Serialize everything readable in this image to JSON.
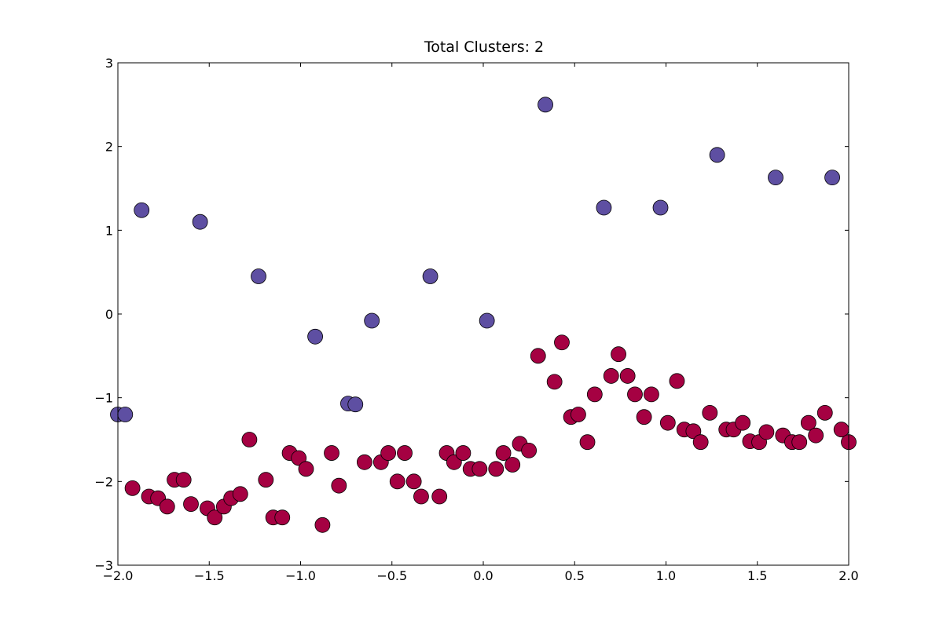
{
  "chart_data": {
    "type": "scatter",
    "title": "Total Clusters: 2",
    "xlabel": "",
    "ylabel": "",
    "xlim": [
      -2.0,
      2.0
    ],
    "ylim": [
      -3,
      3
    ],
    "x_ticks": [
      "−2.0",
      "−1.5",
      "−1.0",
      "−0.5",
      "0.0",
      "0.5",
      "1.0",
      "1.5",
      "2.0"
    ],
    "x_tick_values": [
      -2.0,
      -1.5,
      -1.0,
      -0.5,
      0.0,
      0.5,
      1.0,
      1.5,
      2.0
    ],
    "y_ticks": [
      "−3",
      "−2",
      "−1",
      "0",
      "1",
      "2",
      "3"
    ],
    "y_tick_values": [
      -3,
      -2,
      -1,
      0,
      1,
      2,
      3
    ],
    "grid": false,
    "legend": "none",
    "series": [
      {
        "color": "#5e4fa2",
        "points": [
          [
            -2.0,
            -1.2
          ],
          [
            -1.96,
            -1.2
          ],
          [
            -1.87,
            1.24
          ],
          [
            -1.55,
            1.1
          ],
          [
            -1.23,
            0.45
          ],
          [
            -0.92,
            -0.27
          ],
          [
            -0.74,
            -1.07
          ],
          [
            -0.7,
            -1.08
          ],
          [
            -0.61,
            -0.08
          ],
          [
            -0.29,
            0.45
          ],
          [
            0.02,
            -0.08
          ],
          [
            0.34,
            2.5
          ],
          [
            0.66,
            1.27
          ],
          [
            0.97,
            1.27
          ],
          [
            1.28,
            1.9
          ],
          [
            1.6,
            1.63
          ],
          [
            1.91,
            1.63
          ]
        ]
      },
      {
        "color": "#a50142",
        "points": [
          [
            -1.92,
            -2.08
          ],
          [
            -1.83,
            -2.18
          ],
          [
            -1.78,
            -2.2
          ],
          [
            -1.73,
            -2.3
          ],
          [
            -1.69,
            -1.98
          ],
          [
            -1.64,
            -1.98
          ],
          [
            -1.6,
            -2.27
          ],
          [
            -1.51,
            -2.32
          ],
          [
            -1.47,
            -2.43
          ],
          [
            -1.42,
            -2.3
          ],
          [
            -1.38,
            -2.2
          ],
          [
            -1.33,
            -2.15
          ],
          [
            -1.28,
            -1.5
          ],
          [
            -1.19,
            -1.98
          ],
          [
            -1.15,
            -2.43
          ],
          [
            -1.1,
            -2.43
          ],
          [
            -1.06,
            -1.66
          ],
          [
            -1.01,
            -1.72
          ],
          [
            -0.97,
            -1.85
          ],
          [
            -0.88,
            -2.52
          ],
          [
            -0.83,
            -1.66
          ],
          [
            -0.79,
            -2.05
          ],
          [
            -0.65,
            -1.77
          ],
          [
            -0.56,
            -1.77
          ],
          [
            -0.52,
            -1.66
          ],
          [
            -0.47,
            -2.0
          ],
          [
            -0.43,
            -1.66
          ],
          [
            -0.38,
            -2.0
          ],
          [
            -0.34,
            -2.18
          ],
          [
            -0.24,
            -2.18
          ],
          [
            -0.2,
            -1.66
          ],
          [
            -0.16,
            -1.77
          ],
          [
            -0.11,
            -1.66
          ],
          [
            -0.07,
            -1.85
          ],
          [
            -0.02,
            -1.85
          ],
          [
            0.07,
            -1.85
          ],
          [
            0.11,
            -1.66
          ],
          [
            0.16,
            -1.8
          ],
          [
            0.2,
            -1.55
          ],
          [
            0.25,
            -1.63
          ],
          [
            0.3,
            -0.5
          ],
          [
            0.39,
            -0.81
          ],
          [
            0.43,
            -0.34
          ],
          [
            0.48,
            -1.23
          ],
          [
            0.52,
            -1.2
          ],
          [
            0.57,
            -1.53
          ],
          [
            0.61,
            -0.96
          ],
          [
            0.7,
            -0.74
          ],
          [
            0.74,
            -0.48
          ],
          [
            0.79,
            -0.74
          ],
          [
            0.83,
            -0.96
          ],
          [
            0.88,
            -1.23
          ],
          [
            0.92,
            -0.96
          ],
          [
            1.01,
            -1.3
          ],
          [
            1.06,
            -0.8
          ],
          [
            1.1,
            -1.38
          ],
          [
            1.15,
            -1.4
          ],
          [
            1.19,
            -1.53
          ],
          [
            1.24,
            -1.18
          ],
          [
            1.33,
            -1.38
          ],
          [
            1.37,
            -1.38
          ],
          [
            1.42,
            -1.3
          ],
          [
            1.46,
            -1.52
          ],
          [
            1.51,
            -1.53
          ],
          [
            1.55,
            -1.41
          ],
          [
            1.64,
            -1.45
          ],
          [
            1.69,
            -1.53
          ],
          [
            1.73,
            -1.53
          ],
          [
            1.78,
            -1.3
          ],
          [
            1.82,
            -1.45
          ],
          [
            1.87,
            -1.18
          ],
          [
            1.96,
            -1.38
          ],
          [
            2.0,
            -1.53
          ]
        ]
      }
    ]
  }
}
